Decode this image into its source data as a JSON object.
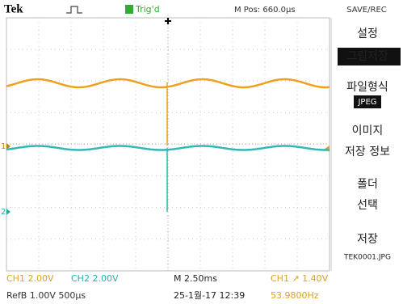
{
  "header": {
    "brand": "Tek",
    "trigger_status": "Trig'd",
    "position": "M Pos: 660.0µs",
    "mode": "SAVE/REC"
  },
  "menu": [
    {
      "label": "설정"
    },
    {
      "label": "그림저장",
      "selected": true
    },
    {
      "label": "파일형식",
      "value": "JPEG"
    },
    {
      "label": "이미지",
      "sub": "저장 정보"
    },
    {
      "label": "폴더",
      "sub": "선택"
    },
    {
      "label": "저장",
      "sub": "TEK0001.JPG"
    }
  ],
  "channels": {
    "ch1_marker": "1",
    "ch2_marker": "2"
  },
  "status": {
    "ch1": "CH1  2.00V",
    "ch2": "CH2  2.00V",
    "timebase": "M 2.50ms",
    "trigger": "CH1 ↗ 1.40V",
    "ref": "RefB 1.00V 500µs",
    "datetime": "25-1월-17 12:39",
    "frequency": "53.9800Hz"
  }
}
